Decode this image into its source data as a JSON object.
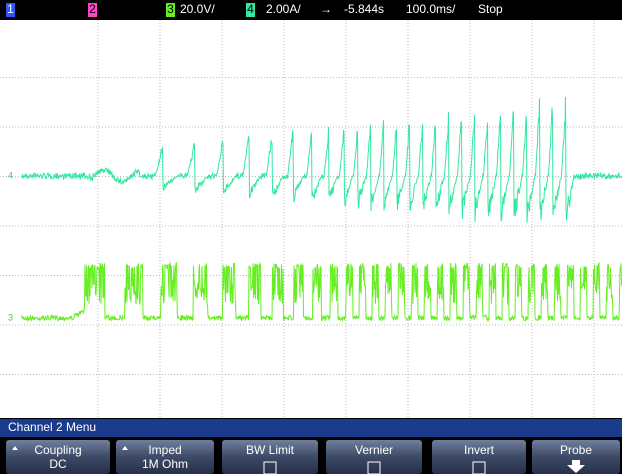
{
  "status_bar": {
    "ch1": "1",
    "ch2": "2",
    "ch3": "3",
    "ch3_scale": "20.0V/",
    "ch4": "4",
    "ch4_scale": "2.00A/",
    "trigger_arrow": "→",
    "delay": "-5.844s",
    "timebase": "100.0ms/",
    "state": "Stop"
  },
  "traces": {
    "ch4_marker": "4",
    "ch3_marker": "3"
  },
  "menu": {
    "title": "Channel 2 Menu",
    "buttons": [
      {
        "label": "Coupling",
        "value": "DC"
      },
      {
        "label": "Imped",
        "value": "1M Ohm"
      },
      {
        "label": "BW Limit"
      },
      {
        "label": "Vernier"
      },
      {
        "label": "Invert"
      },
      {
        "label": "Probe"
      }
    ]
  }
}
